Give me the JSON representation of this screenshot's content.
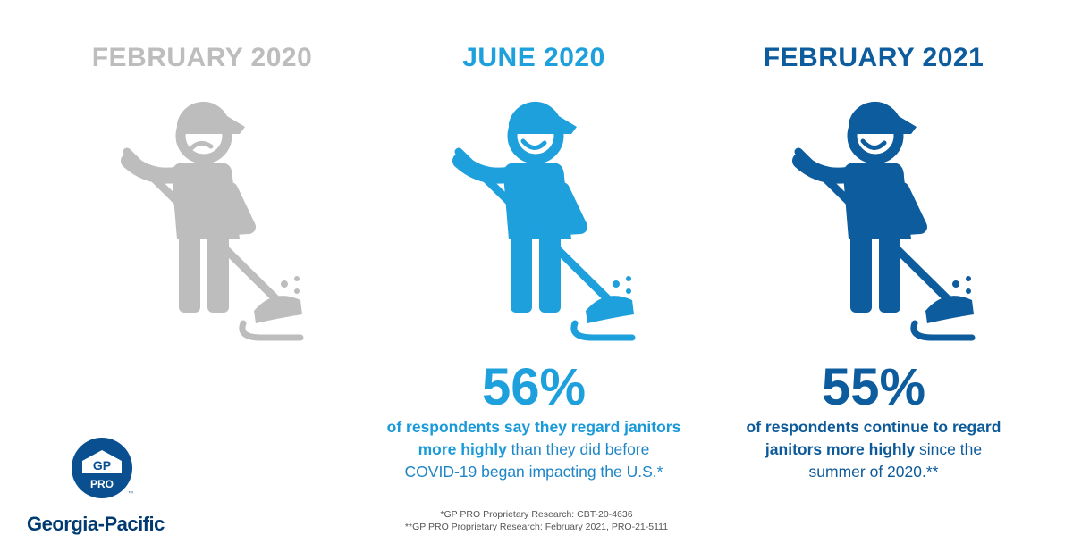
{
  "columns": [
    {
      "title": "FEBRUARY 2020",
      "color": "#bdbdbd",
      "expression": "sad",
      "icon": "janitor-mopping-icon"
    },
    {
      "title": "JUNE 2020",
      "color": "#1ea0dd",
      "expression": "happy",
      "icon": "janitor-mopping-icon",
      "stat": {
        "value": "56%",
        "line1_bold": "of respondents say they regard janitors",
        "line2_bold": "more highly",
        "line2_plain": " than they did before",
        "line3_plain": "COVID-19 began impacting the U.S.*"
      }
    },
    {
      "title": "FEBRUARY 2021",
      "color": "#0d5c9e",
      "expression": "happy",
      "icon": "janitor-mopping-icon",
      "stat": {
        "value": "55%",
        "line1_bold": "of respondents continue to regard",
        "line2_bold": "janitors more highly",
        "line2_plain": " since the",
        "line3_plain": "summer of 2020.**"
      }
    }
  ],
  "footnotes": {
    "note1": "*GP PRO Proprietary Research: CBT-20-4636",
    "note2": "**GP PRO Proprietary Research: February 2021, PRO-21-5111"
  },
  "logo": {
    "badge_top": "GP",
    "badge_bottom": "PRO",
    "trademark": "™",
    "wordmark": "Georgia-Pacific",
    "color": "#0a4f8f",
    "icon": "georgia-pacific-logo-icon"
  }
}
